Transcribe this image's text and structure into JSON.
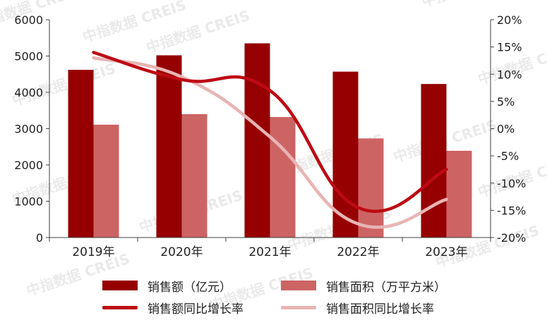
{
  "watermark": {
    "text": "中指数据 CREIS"
  },
  "chart_data": {
    "type": "bar+line",
    "categories": [
      "2019年",
      "2020年",
      "2021年",
      "2022年",
      "2023年"
    ],
    "series": [
      {
        "name": "销售额（亿元）",
        "type": "bar",
        "axis": "left",
        "color": "#960000",
        "values": [
          4620,
          5020,
          5350,
          4570,
          4230
        ]
      },
      {
        "name": "销售面积（万平方米）",
        "type": "bar",
        "axis": "left",
        "color": "#cd6464",
        "values": [
          3110,
          3400,
          3320,
          2730,
          2390
        ]
      },
      {
        "name": "销售额同比增长率",
        "type": "line",
        "axis": "right",
        "color": "#bd0a14",
        "values": [
          14.0,
          9.0,
          7.0,
          -14.5,
          -7.5
        ]
      },
      {
        "name": "销售面积同比增长率",
        "type": "line",
        "axis": "right",
        "color": "#e8b4b4",
        "values": [
          13.0,
          9.5,
          -1.5,
          -17.5,
          -13.0
        ]
      }
    ],
    "y_left": {
      "min": 0,
      "max": 6000,
      "ticks": [
        0,
        1000,
        2000,
        3000,
        4000,
        5000,
        6000
      ],
      "tick_labels": [
        "0",
        "1000",
        "2000",
        "3000",
        "4000",
        "5000",
        "6000"
      ]
    },
    "y_right": {
      "min": -20,
      "max": 20,
      "ticks": [
        -20,
        -15,
        -10,
        -5,
        0,
        5,
        10,
        15,
        20
      ],
      "tick_labels": [
        "-20%",
        "-15%",
        "-10%",
        "-5%",
        "0%",
        "5%",
        "10%",
        "15%",
        "20%"
      ]
    },
    "grid": false,
    "legend_position": "bottom"
  }
}
